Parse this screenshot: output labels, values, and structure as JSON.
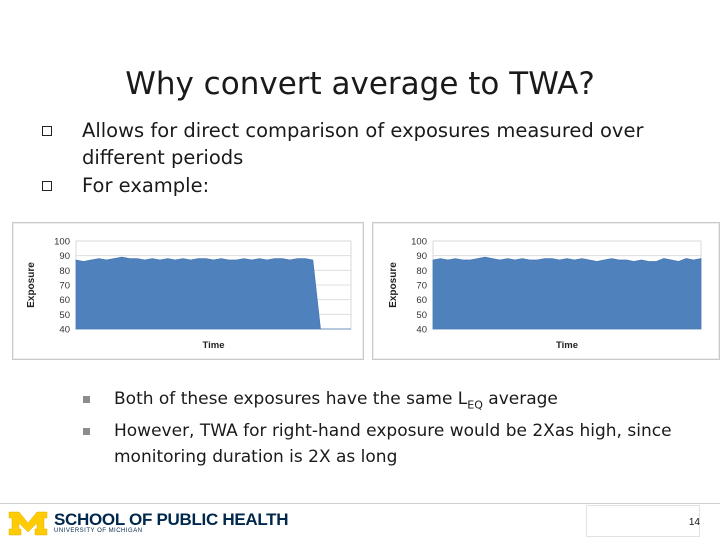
{
  "slide": {
    "title": "Why convert average to TWA?",
    "bullets": [
      "Allows for direct comparison of exposures measured over different periods",
      "For example:"
    ],
    "sub_bullets": {
      "first_prefix": "Both of these exposures have the same L",
      "first_subscript": "EQ",
      "first_suffix": " average",
      "second": "However, TWA for right-hand exposure would be 2Xas high, since monitoring duration is 2X as long"
    }
  },
  "chart_data": [
    {
      "type": "area",
      "title": "",
      "xlabel": "Time",
      "ylabel": "Exposure",
      "ylim": [
        40,
        100
      ],
      "yticks": [
        100,
        90,
        80,
        70,
        60,
        50,
        40
      ],
      "grid": true,
      "x": [
        0,
        0.5,
        1,
        1.5,
        2,
        2.5,
        3,
        3.5,
        4,
        4.5,
        5,
        5.5,
        6,
        6.5,
        7,
        7.5,
        8,
        8.5,
        9,
        9.5,
        10,
        10.5,
        11,
        11.5,
        12,
        12.5,
        13,
        13.5,
        14,
        14.5,
        15,
        15.5,
        16,
        16.5,
        17,
        17.5,
        18
      ],
      "series": [
        {
          "values": [
            87,
            86,
            87,
            88,
            87,
            88,
            89,
            88,
            88,
            87,
            88,
            87,
            88,
            87,
            88,
            87,
            88,
            88,
            87,
            88,
            87,
            87,
            88,
            87,
            88,
            87,
            88,
            88,
            87,
            88,
            88,
            87,
            40,
            40,
            40,
            40,
            40
          ]
        }
      ],
      "color": "#4f81bd"
    },
    {
      "type": "area",
      "title": "",
      "xlabel": "Time",
      "ylabel": "Exposure",
      "ylim": [
        40,
        100
      ],
      "yticks": [
        100,
        90,
        80,
        70,
        60,
        50,
        40
      ],
      "grid": true,
      "x": [
        0,
        0.5,
        1,
        1.5,
        2,
        2.5,
        3,
        3.5,
        4,
        4.5,
        5,
        5.5,
        6,
        6.5,
        7,
        7.5,
        8,
        8.5,
        9,
        9.5,
        10,
        10.5,
        11,
        11.5,
        12,
        12.5,
        13,
        13.5,
        14,
        14.5,
        15,
        15.5,
        16,
        16.5,
        17,
        17.5,
        18
      ],
      "series": [
        {
          "values": [
            87,
            88,
            87,
            88,
            87,
            87,
            88,
            89,
            88,
            87,
            88,
            87,
            88,
            87,
            87,
            88,
            88,
            87,
            88,
            87,
            88,
            87,
            86,
            87,
            88,
            87,
            87,
            86,
            87,
            86,
            86,
            88,
            87,
            86,
            88,
            87,
            88
          ]
        }
      ],
      "color": "#4f81bd"
    }
  ],
  "footer": {
    "logo_text": "SCHOOL OF PUBLIC HEALTH",
    "logo_subtext": "UNIVERSITY OF MICHIGAN",
    "page_number": "14",
    "logo_colors": {
      "maize": "#ffcb05",
      "blue": "#00274c"
    }
  }
}
